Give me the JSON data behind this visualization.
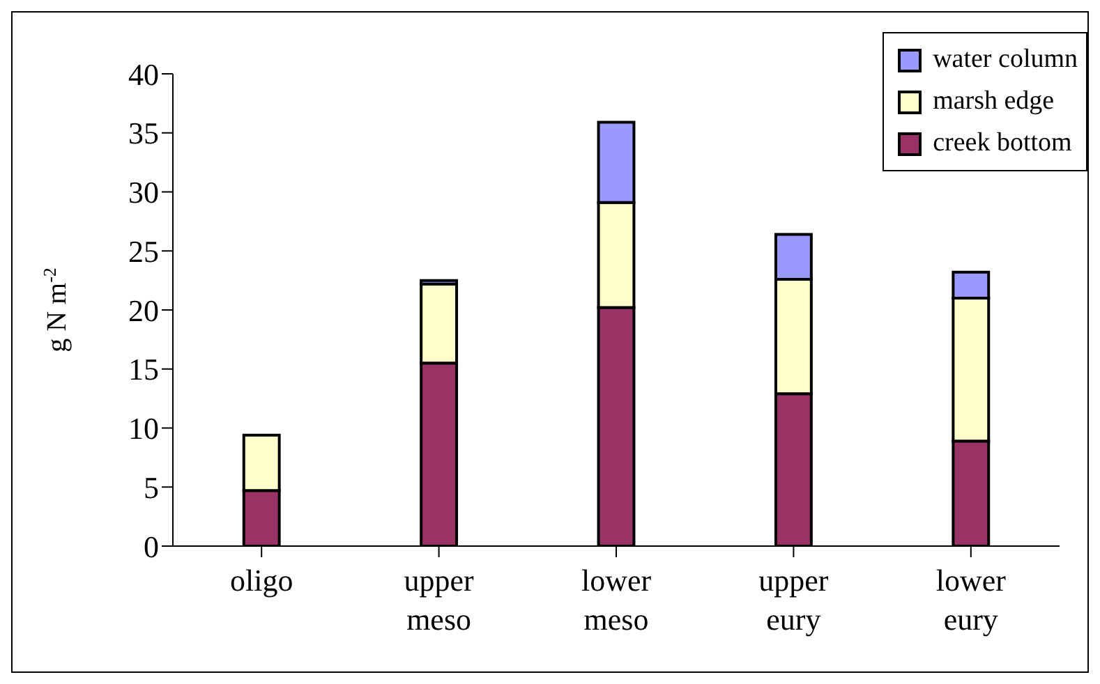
{
  "chart_data": {
    "type": "bar",
    "stacked": true,
    "ylabel": "g N m$^{-2}$",
    "categories": [
      "oligo",
      "upper meso",
      "lower meso",
      "upper eury",
      "lower eury"
    ],
    "series": [
      {
        "name": "creek bottom",
        "color": "#993366",
        "values": [
          4.7,
          15.5,
          20.2,
          12.9,
          8.9
        ]
      },
      {
        "name": "marsh edge",
        "color": "#ffffcc",
        "values": [
          4.7,
          6.7,
          8.9,
          9.7,
          12.1
        ]
      },
      {
        "name": "water column",
        "color": "#9999ff",
        "values": [
          0,
          0.3,
          6.8,
          3.8,
          2.2
        ]
      }
    ],
    "ylim": [
      0,
      40
    ],
    "yticks": [
      0,
      5,
      10,
      15,
      20,
      25,
      30,
      35,
      40
    ],
    "grid": false,
    "legend": "top right"
  }
}
